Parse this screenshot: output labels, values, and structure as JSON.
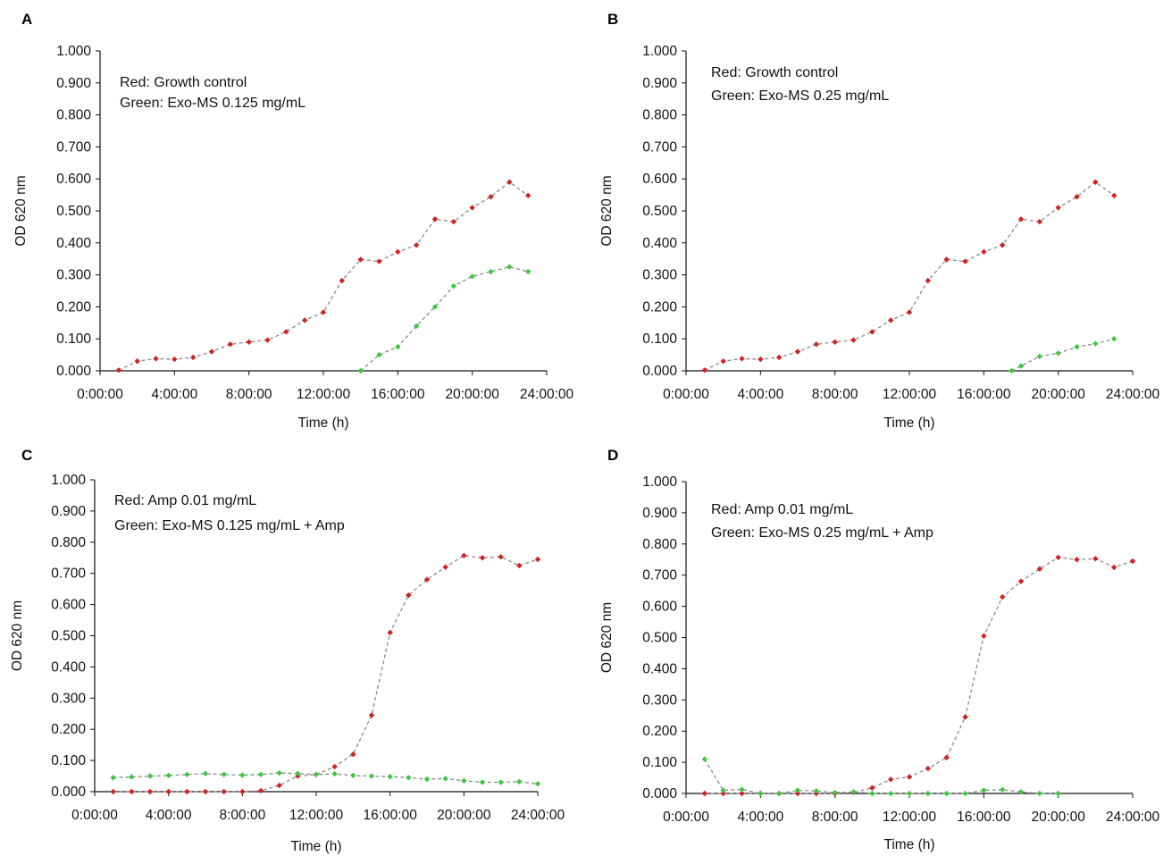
{
  "colors": {
    "growth": "#d42020",
    "exo": "#3cc83c",
    "line": "#8a8a8a",
    "axis": "#111111"
  },
  "chart_data": [
    {
      "panel": "A",
      "type": "line",
      "title": "",
      "xlabel": "Time (h)",
      "ylabel": "OD 620 nm",
      "x_unit": "hours",
      "xlim": [
        0,
        24
      ],
      "ylim": [
        0,
        1.0
      ],
      "xticks": [
        "0:00:00",
        "4:00:00",
        "8:00:00",
        "12:00:00",
        "16:00:00",
        "20:00:00",
        "24:00:00"
      ],
      "yticks": [
        "0.000",
        "0.100",
        "0.200",
        "0.300",
        "0.400",
        "0.500",
        "0.600",
        "0.700",
        "0.800",
        "0.900",
        "1.000"
      ],
      "grid": false,
      "legend": [
        "Red: Growth control",
        "Green: Exo-MS 0.125 mg/mL"
      ],
      "series": [
        {
          "color": "red",
          "x": [
            1,
            2,
            3,
            4,
            5,
            6,
            7,
            8,
            9,
            10,
            11,
            12,
            13,
            14,
            15,
            16,
            17,
            18,
            19,
            20,
            21,
            22,
            23
          ],
          "y": [
            0.002,
            0.03,
            0.038,
            0.036,
            0.042,
            0.06,
            0.083,
            0.09,
            0.096,
            0.122,
            0.158,
            0.183,
            0.282,
            0.348,
            0.342,
            0.372,
            0.393,
            0.474,
            0.466,
            0.51,
            0.544,
            0.59,
            0.548
          ]
        },
        {
          "color": "green",
          "x": [
            14,
            15,
            16,
            17,
            18,
            19,
            20,
            21,
            22,
            23
          ],
          "y": [
            0.0,
            0.05,
            0.075,
            0.14,
            0.2,
            0.265,
            0.295,
            0.31,
            0.325,
            0.31
          ]
        }
      ]
    },
    {
      "panel": "B",
      "type": "line",
      "title": "",
      "xlabel": "Time (h)",
      "ylabel": "OD 620 nm",
      "x_unit": "hours",
      "xlim": [
        0,
        24
      ],
      "ylim": [
        0,
        1.0
      ],
      "xticks": [
        "0:00:00",
        "4:00:00",
        "8:00:00",
        "12:00:00",
        "16:00:00",
        "20:00:00",
        "24:00:00"
      ],
      "yticks": [
        "0.000",
        "0.100",
        "0.200",
        "0.300",
        "0.400",
        "0.500",
        "0.600",
        "0.700",
        "0.800",
        "0.900",
        "1.000"
      ],
      "grid": false,
      "legend": [
        "Red: Growth control",
        "Green: Exo-MS 0.25 mg/mL"
      ],
      "series": [
        {
          "color": "red",
          "x": [
            1,
            2,
            3,
            4,
            5,
            6,
            7,
            8,
            9,
            10,
            11,
            12,
            13,
            14,
            15,
            16,
            17,
            18,
            19,
            20,
            21,
            22,
            23
          ],
          "y": [
            0.002,
            0.03,
            0.038,
            0.036,
            0.042,
            0.06,
            0.083,
            0.09,
            0.096,
            0.122,
            0.158,
            0.183,
            0.282,
            0.348,
            0.342,
            0.372,
            0.393,
            0.474,
            0.466,
            0.51,
            0.544,
            0.59,
            0.548
          ]
        },
        {
          "color": "green",
          "x": [
            17.5,
            18,
            19,
            20,
            21,
            22,
            23
          ],
          "y": [
            0.0,
            0.015,
            0.045,
            0.055,
            0.075,
            0.085,
            0.1
          ]
        }
      ]
    },
    {
      "panel": "C",
      "type": "line",
      "title": "",
      "xlabel": "Time (h)",
      "ylabel": "OD 620 nm",
      "x_unit": "hours",
      "xlim": [
        0,
        24
      ],
      "ylim": [
        0,
        1.0
      ],
      "xticks": [
        "0:00:00",
        "4:00:00",
        "8:00:00",
        "12:00:00",
        "16:00:00",
        "20:00:00",
        "24:00:00"
      ],
      "yticks": [
        "0.000",
        "0.100",
        "0.200",
        "0.300",
        "0.400",
        "0.500",
        "0.600",
        "0.700",
        "0.800",
        "0.900",
        "1.000"
      ],
      "grid": false,
      "legend": [
        "Red: Amp 0.01 mg/mL",
        "Green: Exo-MS 0.125 mg/mL + Amp"
      ],
      "series": [
        {
          "color": "red",
          "x": [
            1,
            2,
            3,
            4,
            5,
            6,
            7,
            8,
            9,
            10,
            11,
            12,
            13,
            14,
            15,
            16,
            17,
            18,
            19,
            20,
            21,
            22,
            23,
            24
          ],
          "y": [
            0,
            0,
            0,
            0,
            0,
            0,
            0,
            0,
            0.003,
            0.02,
            0.05,
            0.055,
            0.08,
            0.12,
            0.245,
            0.51,
            0.63,
            0.68,
            0.72,
            0.757,
            0.75,
            0.753,
            0.725,
            0.745
          ]
        },
        {
          "color": "green",
          "x": [
            1,
            2,
            3,
            4,
            5,
            6,
            7,
            8,
            9,
            10,
            11,
            12,
            13,
            14,
            15,
            16,
            17,
            18,
            19,
            20,
            21,
            22,
            23,
            24
          ],
          "y": [
            0.045,
            0.047,
            0.05,
            0.052,
            0.055,
            0.058,
            0.055,
            0.053,
            0.055,
            0.06,
            0.058,
            0.055,
            0.057,
            0.052,
            0.05,
            0.048,
            0.045,
            0.04,
            0.042,
            0.035,
            0.03,
            0.03,
            0.032,
            0.025
          ]
        }
      ]
    },
    {
      "panel": "D",
      "type": "line",
      "title": "",
      "xlabel": "Time (h)",
      "ylabel": "OD 620 nm",
      "x_unit": "hours",
      "xlim": [
        0,
        24
      ],
      "ylim": [
        0,
        1.0
      ],
      "xticks": [
        "0:00:00",
        "4:00:00",
        "8:00:00",
        "12:00:00",
        "16:00:00",
        "20:00:00",
        "24:00:00"
      ],
      "yticks": [
        "0.000",
        "0.100",
        "0.200",
        "0.300",
        "0.400",
        "0.500",
        "0.600",
        "0.700",
        "0.800",
        "0.900",
        "1.000"
      ],
      "grid": false,
      "legend": [
        "Red: Amp 0.01 mg/mL",
        "Green: Exo-MS 0.25 mg/mL + Amp"
      ],
      "series": [
        {
          "color": "red",
          "x": [
            1,
            2,
            3,
            4,
            5,
            6,
            7,
            8,
            9,
            10,
            11,
            12,
            13,
            14,
            15,
            16,
            17,
            18,
            19,
            20,
            21,
            22,
            23,
            24
          ],
          "y": [
            0,
            0,
            0,
            0,
            0,
            0,
            0,
            0,
            0.003,
            0.018,
            0.045,
            0.053,
            0.08,
            0.115,
            0.245,
            0.505,
            0.63,
            0.68,
            0.72,
            0.757,
            0.75,
            0.753,
            0.725,
            0.745
          ]
        },
        {
          "color": "green",
          "x": [
            1,
            2,
            3,
            4,
            5,
            6,
            7,
            8,
            9,
            10,
            11,
            12,
            13,
            14,
            15,
            16,
            17,
            18,
            19,
            20
          ],
          "y": [
            0.11,
            0.01,
            0.013,
            0.0,
            0.0,
            0.01,
            0.008,
            0.003,
            0.005,
            0.0,
            0.0,
            0.0,
            0.0,
            0.0,
            0.0,
            0.01,
            0.012,
            0.005,
            0.0,
            0.0
          ]
        }
      ]
    }
  ]
}
